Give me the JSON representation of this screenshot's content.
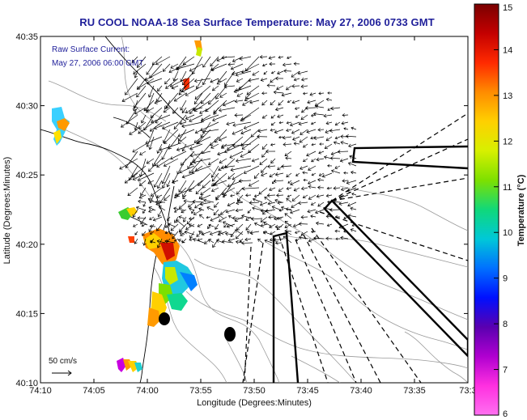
{
  "title": "RU COOL  NOAA-18  Sea Surface Temperature:  May 27, 2006 0733 GMT",
  "overlay": {
    "line1": "Raw Surface Current:",
    "line2": "May 27, 2006 06:00 GMT",
    "scale_label": "50 cm/s"
  },
  "map": {
    "xlabel": "Longitude (Degrees:Minutes)",
    "ylabel": "Latitude (Degrees:Minutes)",
    "x_ticks": [
      "74:10",
      "74:05",
      "74:00",
      "73:55",
      "73:50",
      "73:45",
      "73:40",
      "73:35",
      "73:3"
    ],
    "y_ticks": [
      "40:35",
      "40:30",
      "40:25",
      "40:20",
      "40:15",
      "40:10"
    ]
  },
  "colorbar": {
    "label": "Temperature (°C)",
    "ticks": [
      "15",
      "14",
      "13",
      "12",
      "11",
      "10",
      "9",
      "8",
      "7",
      "6"
    ],
    "colors": [
      "#7a0000",
      "#c40000",
      "#ff2a00",
      "#ff8c00",
      "#ffd000",
      "#d7f000",
      "#7de000",
      "#10d87a",
      "#00c8d8",
      "#0070ff",
      "#0010ff",
      "#5a00b0",
      "#b000d0",
      "#ff30e0",
      "#ff70f0"
    ]
  }
}
